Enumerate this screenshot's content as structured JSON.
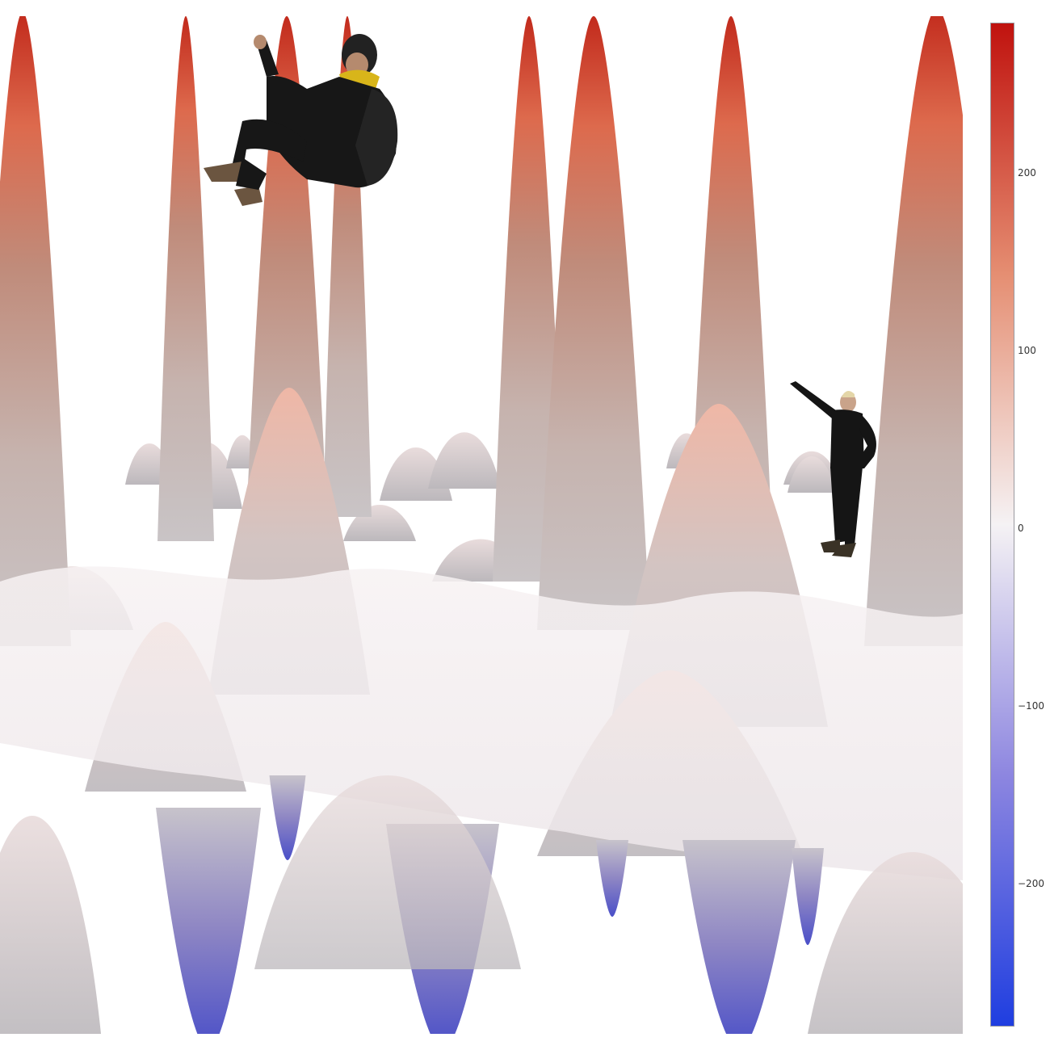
{
  "chart_data": {
    "type": "surface",
    "colorscale": [
      [
        0.0,
        "#1f3ee0"
      ],
      [
        0.25,
        "#8d86e0"
      ],
      [
        0.5,
        "#f5f2f4"
      ],
      [
        0.75,
        "#e58e72"
      ],
      [
        1.0,
        "#c0120e"
      ]
    ],
    "cmin": -280,
    "cmax": 285,
    "colorbar": {
      "ticks": [
        {
          "value": 200,
          "label": "200"
        },
        {
          "value": 100,
          "label": "100"
        },
        {
          "value": 0,
          "label": "0"
        },
        {
          "value": -100,
          "label": "−100"
        },
        {
          "value": -200,
          "label": "−200"
        }
      ]
    }
  },
  "overlays": {
    "figure_1": "climbing-person",
    "figure_2": "pointing-person"
  },
  "colors": {
    "peak_red": "#c0120e",
    "trough_blue": "#1f3ee0",
    "neutral": "#f5f2f4"
  }
}
